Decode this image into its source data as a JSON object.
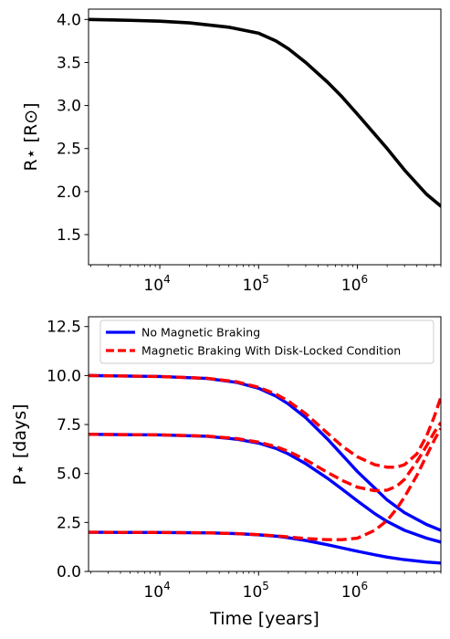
{
  "chart_data": [
    {
      "type": "line",
      "title": "",
      "xlabel": "",
      "ylabel": "R⋆ [R⊙]",
      "xscale": "log",
      "xlim": [
        1900,
        7000000
      ],
      "ylim": [
        1.15,
        4.12
      ],
      "xticks": [
        {
          "value": 10000,
          "base": "10",
          "exp": "4"
        },
        {
          "value": 100000,
          "base": "10",
          "exp": "5"
        },
        {
          "value": 1000000,
          "base": "10",
          "exp": "6"
        }
      ],
      "yticks": [
        {
          "value": 1.5,
          "label": "1.5"
        },
        {
          "value": 2.0,
          "label": "2.0"
        },
        {
          "value": 2.5,
          "label": "2.5"
        },
        {
          "value": 3.0,
          "label": "3.0"
        },
        {
          "value": 3.5,
          "label": "3.5"
        },
        {
          "value": 4.0,
          "label": "4.0"
        }
      ],
      "grid": false,
      "series": [
        {
          "name": "",
          "color": "#000000",
          "style": "solid",
          "x": [
            1900,
            5000,
            10000,
            20000,
            50000,
            100000,
            150000,
            200000,
            300000,
            500000,
            700000,
            1000000,
            2000000,
            3000000,
            5000000,
            7000000
          ],
          "y": [
            4.0,
            3.99,
            3.98,
            3.96,
            3.91,
            3.84,
            3.75,
            3.66,
            3.5,
            3.27,
            3.1,
            2.9,
            2.5,
            2.25,
            1.97,
            1.83
          ]
        }
      ]
    },
    {
      "type": "line",
      "title": "",
      "xlabel": "Time [years]",
      "ylabel": "P⋆ [days]",
      "xscale": "log",
      "xlim": [
        1900,
        7000000
      ],
      "ylim": [
        0.0,
        13.0
      ],
      "xticks": [
        {
          "value": 10000,
          "base": "10",
          "exp": "4"
        },
        {
          "value": 100000,
          "base": "10",
          "exp": "5"
        },
        {
          "value": 1000000,
          "base": "10",
          "exp": "6"
        }
      ],
      "yticks": [
        {
          "value": 0.0,
          "label": "0.0"
        },
        {
          "value": 2.5,
          "label": "2.5"
        },
        {
          "value": 5.0,
          "label": "5.0"
        },
        {
          "value": 7.5,
          "label": "7.5"
        },
        {
          "value": 10.0,
          "label": "10.0"
        },
        {
          "value": 12.5,
          "label": "12.5"
        }
      ],
      "grid": false,
      "legend": {
        "placement": "top-left",
        "entries": [
          {
            "label": "No Magnetic Braking",
            "color": "#0000ff",
            "style": "solid"
          },
          {
            "label": "Magnetic Braking With Disk-Locked Condition",
            "color": "#ff0000",
            "style": "dashed"
          }
        ]
      },
      "series": [
        {
          "name": "No Magnetic Braking",
          "color": "#0000ff",
          "style": "solid",
          "x": [
            1900,
            10000,
            30000,
            60000,
            100000,
            150000,
            200000,
            300000,
            500000,
            700000,
            1000000,
            1500000,
            2000000,
            3000000,
            5000000,
            7000000
          ],
          "y": [
            10.0,
            9.95,
            9.85,
            9.65,
            9.35,
            8.95,
            8.55,
            7.85,
            6.75,
            5.95,
            5.1,
            4.25,
            3.65,
            3.0,
            2.4,
            2.1
          ]
        },
        {
          "name": "No Magnetic Braking",
          "color": "#0000ff",
          "style": "solid",
          "x": [
            1900,
            10000,
            30000,
            60000,
            100000,
            150000,
            200000,
            300000,
            500000,
            700000,
            1000000,
            1500000,
            2000000,
            3000000,
            5000000,
            7000000
          ],
          "y": [
            7.0,
            6.97,
            6.9,
            6.75,
            6.55,
            6.28,
            6.0,
            5.5,
            4.75,
            4.2,
            3.6,
            2.95,
            2.55,
            2.1,
            1.7,
            1.5
          ]
        },
        {
          "name": "No Magnetic Braking",
          "color": "#0000ff",
          "style": "solid",
          "x": [
            1900,
            10000,
            30000,
            60000,
            100000,
            150000,
            200000,
            300000,
            500000,
            700000,
            1000000,
            1500000,
            2000000,
            3000000,
            5000000,
            7000000
          ],
          "y": [
            2.0,
            1.99,
            1.97,
            1.93,
            1.87,
            1.8,
            1.72,
            1.58,
            1.36,
            1.2,
            1.03,
            0.85,
            0.73,
            0.6,
            0.48,
            0.43
          ]
        },
        {
          "name": "Magnetic Braking With Disk-Locked Condition",
          "color": "#ff0000",
          "style": "dashed",
          "x": [
            1900,
            10000,
            30000,
            60000,
            100000,
            150000,
            200000,
            300000,
            500000,
            700000,
            1000000,
            1500000,
            2000000,
            2500000,
            3000000,
            4000000,
            5000000,
            6000000,
            7000000
          ],
          "y": [
            10.0,
            9.95,
            9.86,
            9.68,
            9.4,
            9.05,
            8.7,
            8.05,
            7.05,
            6.4,
            5.85,
            5.45,
            5.32,
            5.32,
            5.45,
            6.0,
            6.9,
            7.9,
            8.9
          ]
        },
        {
          "name": "Magnetic Braking With Disk-Locked Condition",
          "color": "#ff0000",
          "style": "dashed",
          "x": [
            1900,
            10000,
            30000,
            60000,
            100000,
            150000,
            200000,
            300000,
            500000,
            700000,
            1000000,
            1500000,
            2000000,
            2500000,
            3000000,
            4000000,
            5000000,
            6000000,
            7000000
          ],
          "y": [
            7.0,
            6.97,
            6.91,
            6.78,
            6.6,
            6.37,
            6.13,
            5.7,
            5.05,
            4.65,
            4.3,
            4.12,
            4.15,
            4.35,
            4.7,
            5.6,
            6.4,
            7.1,
            7.6
          ]
        },
        {
          "name": "Magnetic Braking With Disk-Locked Condition",
          "color": "#ff0000",
          "style": "dashed",
          "x": [
            1900,
            10000,
            30000,
            60000,
            100000,
            150000,
            200000,
            300000,
            500000,
            700000,
            1000000,
            1500000,
            2000000,
            2500000,
            3000000,
            4000000,
            5000000,
            6000000,
            7000000
          ],
          "y": [
            2.0,
            1.99,
            1.97,
            1.93,
            1.88,
            1.82,
            1.76,
            1.68,
            1.62,
            1.62,
            1.7,
            2.1,
            2.6,
            3.2,
            3.8,
            4.9,
            5.9,
            6.7,
            7.3
          ]
        }
      ]
    }
  ]
}
